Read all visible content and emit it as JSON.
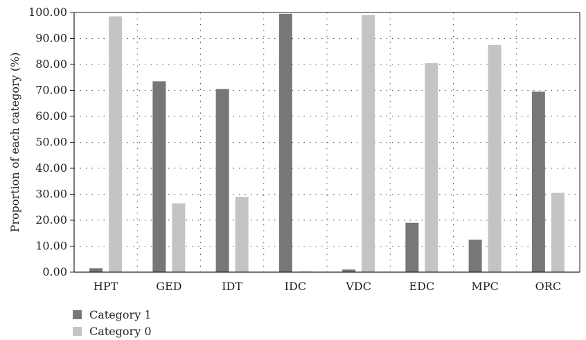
{
  "chart_data": {
    "type": "bar",
    "categories": [
      "HPT",
      "GED",
      "IDT",
      "IDC",
      "VDC",
      "EDC",
      "MPC",
      "ORC"
    ],
    "series": [
      {
        "name": "Category 1",
        "values": [
          1.5,
          73.5,
          70.5,
          99.5,
          1.0,
          19.0,
          12.5,
          69.5
        ],
        "color": "#777777"
      },
      {
        "name": "Category 0",
        "values": [
          98.5,
          26.5,
          29.0,
          0.3,
          99.0,
          80.5,
          87.5,
          30.5
        ],
        "color": "#c4c4c4"
      }
    ],
    "ylabel": "Proportion of each category (%)",
    "xlabel": "",
    "ylim": [
      0,
      100
    ],
    "yticks": [
      "0.00",
      "10.00",
      "20.00",
      "30.00",
      "40.00",
      "50.00",
      "60.00",
      "70.00",
      "80.00",
      "90.00",
      "100.00"
    ],
    "grid": true,
    "legend_position": "bottom-left"
  }
}
